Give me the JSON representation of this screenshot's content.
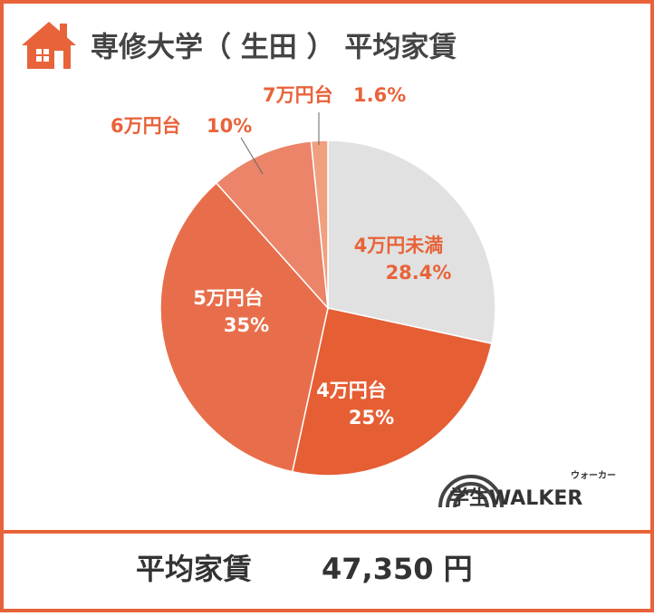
{
  "chart_data": {
    "type": "pie",
    "title": "専修大学（ 生田 ） 平均家賃",
    "categories": [
      "4万円未満",
      "4万円台",
      "5万円台",
      "6万円台",
      "7万円台"
    ],
    "values": [
      28.4,
      25,
      35,
      10,
      1.6
    ],
    "value_labels": [
      "28.4%",
      "25%",
      "35%",
      "10%",
      "1.6%"
    ],
    "colors": [
      "#e1e1e1",
      "#e65e34",
      "#e86e4b",
      "#eb8468",
      "#f0a07f"
    ]
  },
  "footer": {
    "label": "平均家賃",
    "value": "47,350 円"
  },
  "logo": {
    "text": "学生WALKER",
    "reading": "ウォーカー"
  }
}
